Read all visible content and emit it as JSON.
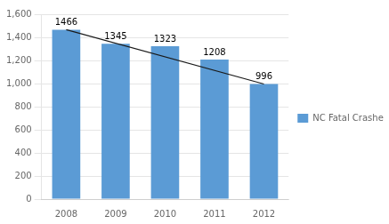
{
  "chart_data": {
    "type": "bar",
    "categories": [
      "2008",
      "2009",
      "2010",
      "2011",
      "2012"
    ],
    "series": [
      {
        "name": "NC Fatal Crashes",
        "color": "#5B9BD5",
        "values": [
          1466,
          1345,
          1323,
          1208,
          996
        ]
      },
      {
        "type": "line",
        "color": "#1a1a1a",
        "values": [
          1466,
          null,
          null,
          null,
          996
        ]
      }
    ],
    "ylim": [
      0,
      1600
    ],
    "yticks": [
      0,
      200,
      400,
      600,
      800,
      1000,
      1200,
      1400,
      1600
    ],
    "grid": true,
    "data_labels": true,
    "legend": "right"
  }
}
